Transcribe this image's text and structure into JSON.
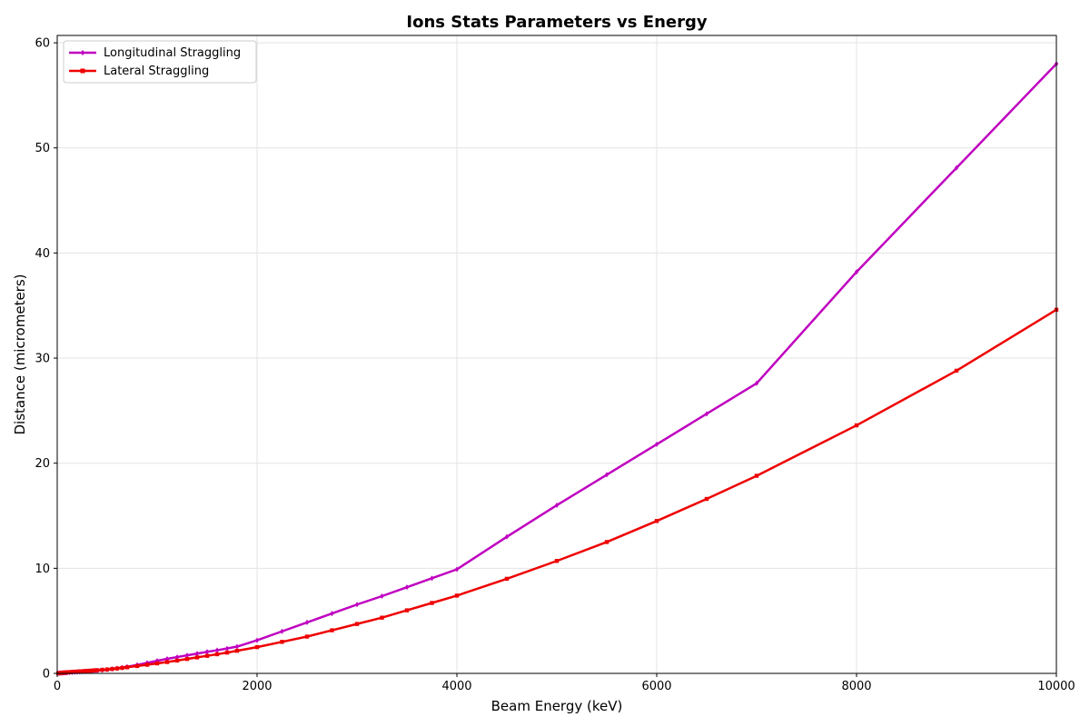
{
  "chart_data": {
    "type": "line",
    "title": "Ions Stats Parameters vs Energy",
    "xlabel": "Beam Energy (keV)",
    "ylabel": "Distance (micrometers)",
    "xlim": [
      0,
      10000
    ],
    "ylim": [
      0,
      60.7
    ],
    "xticks": [
      0,
      2000,
      4000,
      6000,
      8000,
      10000
    ],
    "yticks": [
      0,
      10,
      20,
      30,
      40,
      50,
      60
    ],
    "grid": true,
    "legend_position": "upper-left",
    "series": [
      {
        "name": "Longitudinal Straggling",
        "color": "#bf00bf",
        "marker": "diamond",
        "x": [
          10,
          20,
          30,
          40,
          50,
          60,
          70,
          80,
          90,
          100,
          125,
          150,
          175,
          200,
          225,
          250,
          275,
          300,
          325,
          350,
          375,
          400,
          450,
          500,
          550,
          600,
          650,
          700,
          800,
          900,
          1000,
          1100,
          1200,
          1300,
          1400,
          1500,
          1600,
          1700,
          1800,
          2000,
          2250,
          2500,
          2750,
          3000,
          3250,
          3500,
          3750,
          4000,
          4500,
          5000,
          5500,
          6000,
          6500,
          7000,
          8000,
          9000,
          10000
        ],
        "y": [
          0.01,
          0.02,
          0.03,
          0.03,
          0.04,
          0.05,
          0.05,
          0.06,
          0.07,
          0.07,
          0.09,
          0.1,
          0.12,
          0.13,
          0.15,
          0.16,
          0.18,
          0.2,
          0.21,
          0.23,
          0.25,
          0.27,
          0.31,
          0.36,
          0.42,
          0.48,
          0.55,
          0.63,
          0.8,
          1.0,
          1.2,
          1.38,
          1.55,
          1.72,
          1.88,
          2.05,
          2.2,
          2.37,
          2.55,
          3.15,
          4.0,
          4.85,
          5.7,
          6.55,
          7.35,
          8.2,
          9.05,
          9.9,
          13.0,
          16.0,
          18.9,
          21.8,
          24.7,
          27.6,
          38.2,
          48.1,
          58.0
        ]
      },
      {
        "name": "Lateral Straggling",
        "color": "#ee0000",
        "marker": "square",
        "x": [
          10,
          20,
          30,
          40,
          50,
          60,
          70,
          80,
          90,
          100,
          125,
          150,
          175,
          200,
          225,
          250,
          275,
          300,
          325,
          350,
          375,
          400,
          450,
          500,
          550,
          600,
          650,
          700,
          800,
          900,
          1000,
          1100,
          1200,
          1300,
          1400,
          1500,
          1600,
          1700,
          1800,
          2000,
          2250,
          2500,
          2750,
          3000,
          3250,
          3500,
          3750,
          4000,
          4500,
          5000,
          5500,
          6000,
          6500,
          7000,
          8000,
          9000,
          10000
        ],
        "y": [
          0.01,
          0.02,
          0.03,
          0.04,
          0.05,
          0.06,
          0.07,
          0.08,
          0.09,
          0.1,
          0.12,
          0.14,
          0.15,
          0.17,
          0.19,
          0.2,
          0.22,
          0.24,
          0.25,
          0.27,
          0.29,
          0.3,
          0.34,
          0.37,
          0.42,
          0.47,
          0.52,
          0.58,
          0.7,
          0.82,
          0.95,
          1.08,
          1.22,
          1.37,
          1.52,
          1.67,
          1.82,
          1.98,
          2.15,
          2.5,
          3.0,
          3.5,
          4.1,
          4.7,
          5.3,
          6.0,
          6.7,
          7.4,
          9.0,
          10.7,
          12.5,
          14.5,
          16.6,
          18.8,
          23.6,
          28.8,
          34.6
        ]
      }
    ]
  }
}
